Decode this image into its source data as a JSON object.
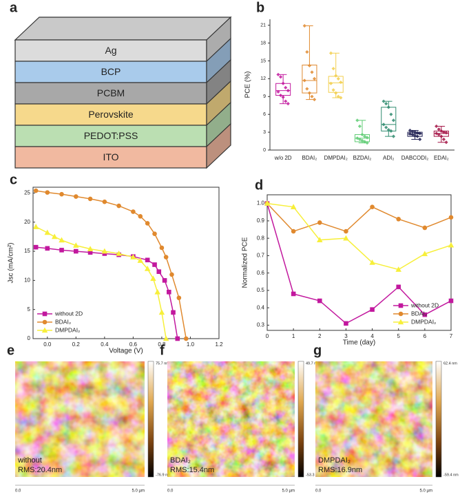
{
  "panel_labels": [
    "a",
    "b",
    "c",
    "d",
    "e",
    "f",
    "g"
  ],
  "layers": [
    {
      "name": "Ag",
      "color": "#dcdcdc"
    },
    {
      "name": "BCP",
      "color": "#a9cbeb"
    },
    {
      "name": "PCBM",
      "color": "#a8a8a8"
    },
    {
      "name": "Perovskite",
      "color": "#f6d98c"
    },
    {
      "name": "PEDOT:PSS",
      "color": "#bbdfb2"
    },
    {
      "name": "ITO",
      "color": "#f1b9a0"
    }
  ],
  "chart_data": [
    {
      "type": "box",
      "ylabel": "PCE (%)",
      "categories": [
        "w/o 2D",
        "BDAI₂",
        "DMPDAI₂",
        "BZDAI₂",
        "ADI₂",
        "DABCODI₂",
        "EDAI₂"
      ],
      "colors": [
        "#c2189e",
        "#e0892e",
        "#f2cf4e",
        "#5fcc74",
        "#2e8b6e",
        "#1c1c50",
        "#a31244"
      ],
      "boxes": [
        {
          "low": 7.8,
          "q1": 9.2,
          "median": 10.0,
          "q3": 11.2,
          "high": 12.7,
          "points": [
            12.7,
            12.3,
            11.2,
            10.5,
            10.0,
            9.8,
            9.2,
            8.9,
            8.2,
            7.8
          ]
        },
        {
          "low": 8.5,
          "q1": 9.6,
          "median": 11.7,
          "q3": 14.3,
          "high": 20.9,
          "points": [
            20.9,
            16.5,
            14.2,
            13.1,
            12.0,
            11.7,
            10.3,
            9.6,
            9.0,
            8.5
          ]
        },
        {
          "low": 8.8,
          "q1": 9.7,
          "median": 11.3,
          "q3": 12.4,
          "high": 16.3,
          "points": [
            16.3,
            13.7,
            12.5,
            12.0,
            11.4,
            11.2,
            10.1,
            9.6,
            9.0,
            8.8
          ]
        },
        {
          "low": 1.2,
          "q1": 1.4,
          "median": 2.0,
          "q3": 2.6,
          "high": 5.0,
          "points": [
            5.0,
            4.0,
            2.6,
            2.3,
            2.1,
            2.0,
            1.8,
            1.6,
            1.4,
            1.2
          ]
        },
        {
          "low": 2.3,
          "q1": 3.2,
          "median": 4.3,
          "q3": 7.2,
          "high": 8.2,
          "points": [
            8.2,
            7.8,
            7.2,
            6.0,
            5.0,
            4.3,
            3.8,
            3.4,
            3.2,
            2.3
          ]
        },
        {
          "low": 1.8,
          "q1": 2.3,
          "median": 2.7,
          "q3": 3.0,
          "high": 3.3,
          "points": [
            3.3,
            3.1,
            3.0,
            2.9,
            2.8,
            2.7,
            2.6,
            2.4,
            2.3,
            1.8
          ]
        },
        {
          "low": 1.3,
          "q1": 2.3,
          "median": 2.8,
          "q3": 3.2,
          "high": 4.0,
          "points": [
            4.0,
            3.5,
            3.2,
            3.0,
            2.9,
            2.8,
            2.6,
            2.3,
            1.8,
            1.3
          ]
        }
      ],
      "ylim": [
        0,
        22
      ],
      "yticks": [
        0,
        3,
        6,
        9,
        12,
        15,
        18,
        21
      ]
    },
    {
      "type": "line",
      "xlabel": "Voltage (V)",
      "ylabel": "Jsc (mA/cm²)",
      "legend": "lower left",
      "xlim": [
        -0.1,
        1.2
      ],
      "ylim": [
        0,
        26
      ],
      "xticks": [
        {
          "value": 0,
          "label": "0.0"
        },
        0.2,
        0.4,
        0.6,
        0.8,
        {
          "value": 1,
          "label": "1.0"
        },
        1.2
      ],
      "yticks": [
        0,
        5,
        10,
        15,
        20,
        25
      ],
      "series": [
        {
          "name": "without 2D",
          "color": "#c2189e",
          "marker": "square",
          "x": [
            -0.08,
            0.0,
            0.1,
            0.2,
            0.3,
            0.4,
            0.5,
            0.6,
            0.7,
            0.75,
            0.78,
            0.82,
            0.85,
            0.88,
            0.91
          ],
          "values": [
            15.7,
            15.5,
            15.2,
            15.0,
            14.8,
            14.6,
            14.4,
            14.1,
            13.5,
            12.7,
            11.5,
            10.0,
            8.0,
            4.5,
            0
          ]
        },
        {
          "name": "BDAI₂",
          "color": "#e0892e",
          "marker": "circle",
          "x": [
            -0.08,
            0.0,
            0.1,
            0.2,
            0.3,
            0.4,
            0.5,
            0.6,
            0.65,
            0.7,
            0.75,
            0.8,
            0.83,
            0.87,
            0.92,
            0.97
          ],
          "values": [
            25.4,
            25.1,
            24.8,
            24.4,
            24.0,
            23.5,
            22.8,
            21.8,
            21.0,
            19.8,
            18.0,
            15.6,
            14.0,
            11.0,
            7.0,
            0
          ]
        },
        {
          "name": "DMPDAI₂",
          "color": "#f7ef3a",
          "marker": "triangle",
          "x": [
            -0.08,
            0.0,
            0.05,
            0.1,
            0.2,
            0.3,
            0.4,
            0.5,
            0.6,
            0.65,
            0.7,
            0.74,
            0.77,
            0.8,
            0.83
          ],
          "values": [
            19.2,
            18.2,
            17.5,
            16.9,
            16.0,
            15.4,
            15.0,
            14.6,
            14.0,
            13.4,
            12.0,
            10.3,
            8.0,
            4.5,
            0
          ]
        }
      ]
    },
    {
      "type": "line",
      "xlabel": "Time (day)",
      "ylabel": "Normalized PCE",
      "legend": "lower right",
      "x": [
        0,
        1,
        2,
        3,
        4,
        5,
        6,
        7
      ],
      "xlim": [
        0,
        7
      ],
      "ylim": [
        0.27,
        1.05
      ],
      "xticks": [
        0,
        1,
        2,
        3,
        4,
        5,
        6,
        7
      ],
      "yticks": [
        0.3,
        0.4,
        0.5,
        0.6,
        0.7,
        0.8,
        0.9,
        {
          "value": 1,
          "label": "1.0"
        }
      ],
      "series": [
        {
          "name": "without 2D",
          "color": "#c2189e",
          "marker": "square",
          "values": [
            1.0,
            0.48,
            0.44,
            0.31,
            0.39,
            0.52,
            0.36,
            0.44
          ]
        },
        {
          "name": "BDAI₂",
          "color": "#e0892e",
          "marker": "circle",
          "values": [
            1.0,
            0.84,
            0.89,
            0.84,
            0.98,
            0.91,
            0.86,
            0.92
          ]
        },
        {
          "name": "DMPDAI₂",
          "color": "#f7ef3a",
          "marker": "triangle",
          "values": [
            1.0,
            0.98,
            0.79,
            0.8,
            0.66,
            0.62,
            0.71,
            0.76
          ]
        }
      ]
    }
  ],
  "afm_images": [
    {
      "sample": "without",
      "rms": "RMS:20.4nm",
      "scale_max": "75.7 nm",
      "scale_min": "-76.9 nm",
      "x_start": "0.0",
      "x_end": "5.0 µm"
    },
    {
      "sample": "BDAI₂",
      "rms": "RMS:15.4nm",
      "scale_max": "49.7 nm",
      "scale_min": "-53.3 nm",
      "x_start": "0.0",
      "x_end": "5.0 µm"
    },
    {
      "sample": "DMPDAI₂",
      "rms": "RMS:16.9nm",
      "scale_max": "62.4 nm",
      "scale_min": "-59.4 nm",
      "x_start": "0.0",
      "x_end": "5.0 µm"
    }
  ]
}
